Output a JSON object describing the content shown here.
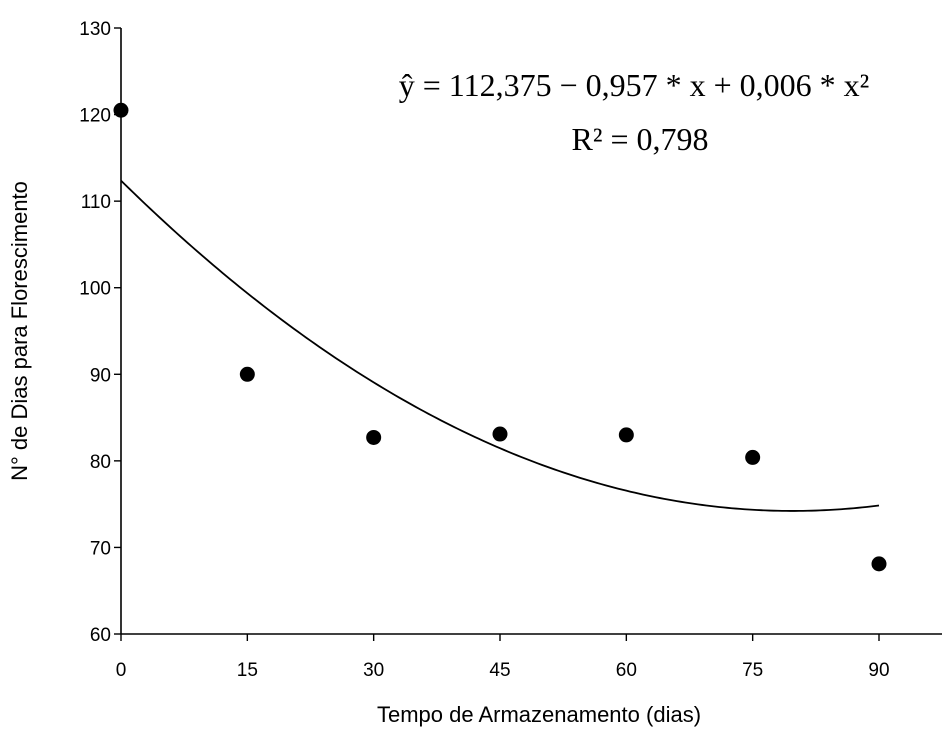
{
  "chart_data": {
    "type": "scatter",
    "xlabel": "Tempo de Armazenamento (dias)",
    "ylabel": "N° de Dias para Florescimento",
    "xlim": [
      0,
      90
    ],
    "ylim": [
      60,
      130
    ],
    "x_ticks": [
      0,
      15,
      30,
      45,
      60,
      75,
      90
    ],
    "y_ticks": [
      60,
      70,
      80,
      90,
      100,
      110,
      120,
      130
    ],
    "grid": false,
    "series": [
      {
        "x": [
          0,
          15,
          30,
          45,
          60,
          75,
          90
        ],
        "y": [
          120.5,
          90.0,
          82.7,
          83.1,
          83.0,
          80.4,
          68.1
        ]
      }
    ],
    "fit": {
      "type": "quadratic",
      "coefficients": [
        112.375,
        -0.957,
        0.006
      ],
      "equation": "ŷ = 112,375 − 0,957 * x + 0,006 * x²",
      "r_squared": "R² = 0,798"
    }
  }
}
